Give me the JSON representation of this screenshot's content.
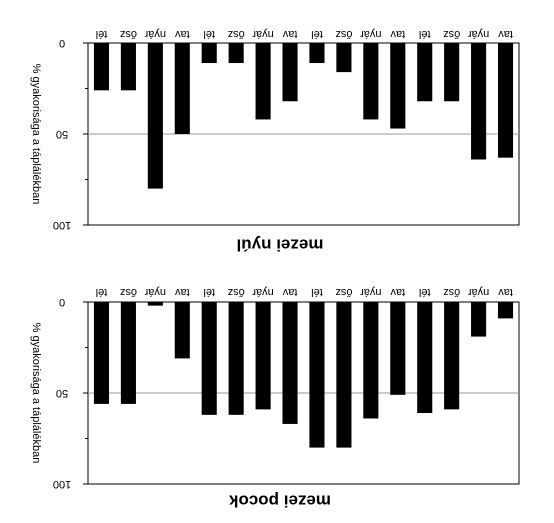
{
  "chart_data": [
    {
      "type": "bar",
      "title": "mezei nyúl",
      "xlabel": "",
      "ylabel": "% gyakorisága a táplálékban",
      "ylim": [
        0,
        100
      ],
      "y_ticks": [
        "0",
        "50",
        "100"
      ],
      "categories": [
        "tav",
        "nyár",
        "ősz",
        "tél",
        "tav",
        "nyár",
        "ősz",
        "tél",
        "tav",
        "nyár",
        "ősz",
        "tél",
        "tav",
        "nyár",
        "ősz",
        "tél"
      ],
      "values": [
        63,
        64,
        32,
        32,
        47,
        42,
        16,
        11,
        32,
        42,
        11,
        11,
        50,
        80,
        26,
        26
      ],
      "grid": "horizontal",
      "orientation": "rotated-180",
      "bar_color": "#000000"
    },
    {
      "type": "bar",
      "title": "mezei pocok",
      "xlabel": "",
      "ylabel": "% gyakorisága a táplálékban",
      "ylim": [
        0,
        100
      ],
      "y_ticks": [
        "0",
        "50",
        "100"
      ],
      "categories": [
        "tav",
        "nyár",
        "ősz",
        "tél",
        "tav",
        "nyár",
        "ősz",
        "tél",
        "tav",
        "nyár",
        "ősz",
        "tél",
        "tav",
        "nyár",
        "ősz",
        "tél"
      ],
      "values": [
        9,
        19,
        59,
        61,
        51,
        64,
        80,
        80,
        67,
        59,
        62,
        62,
        31,
        2,
        56,
        56
      ],
      "grid": "horizontal",
      "orientation": "rotated-180",
      "bar_color": "#000000"
    }
  ]
}
